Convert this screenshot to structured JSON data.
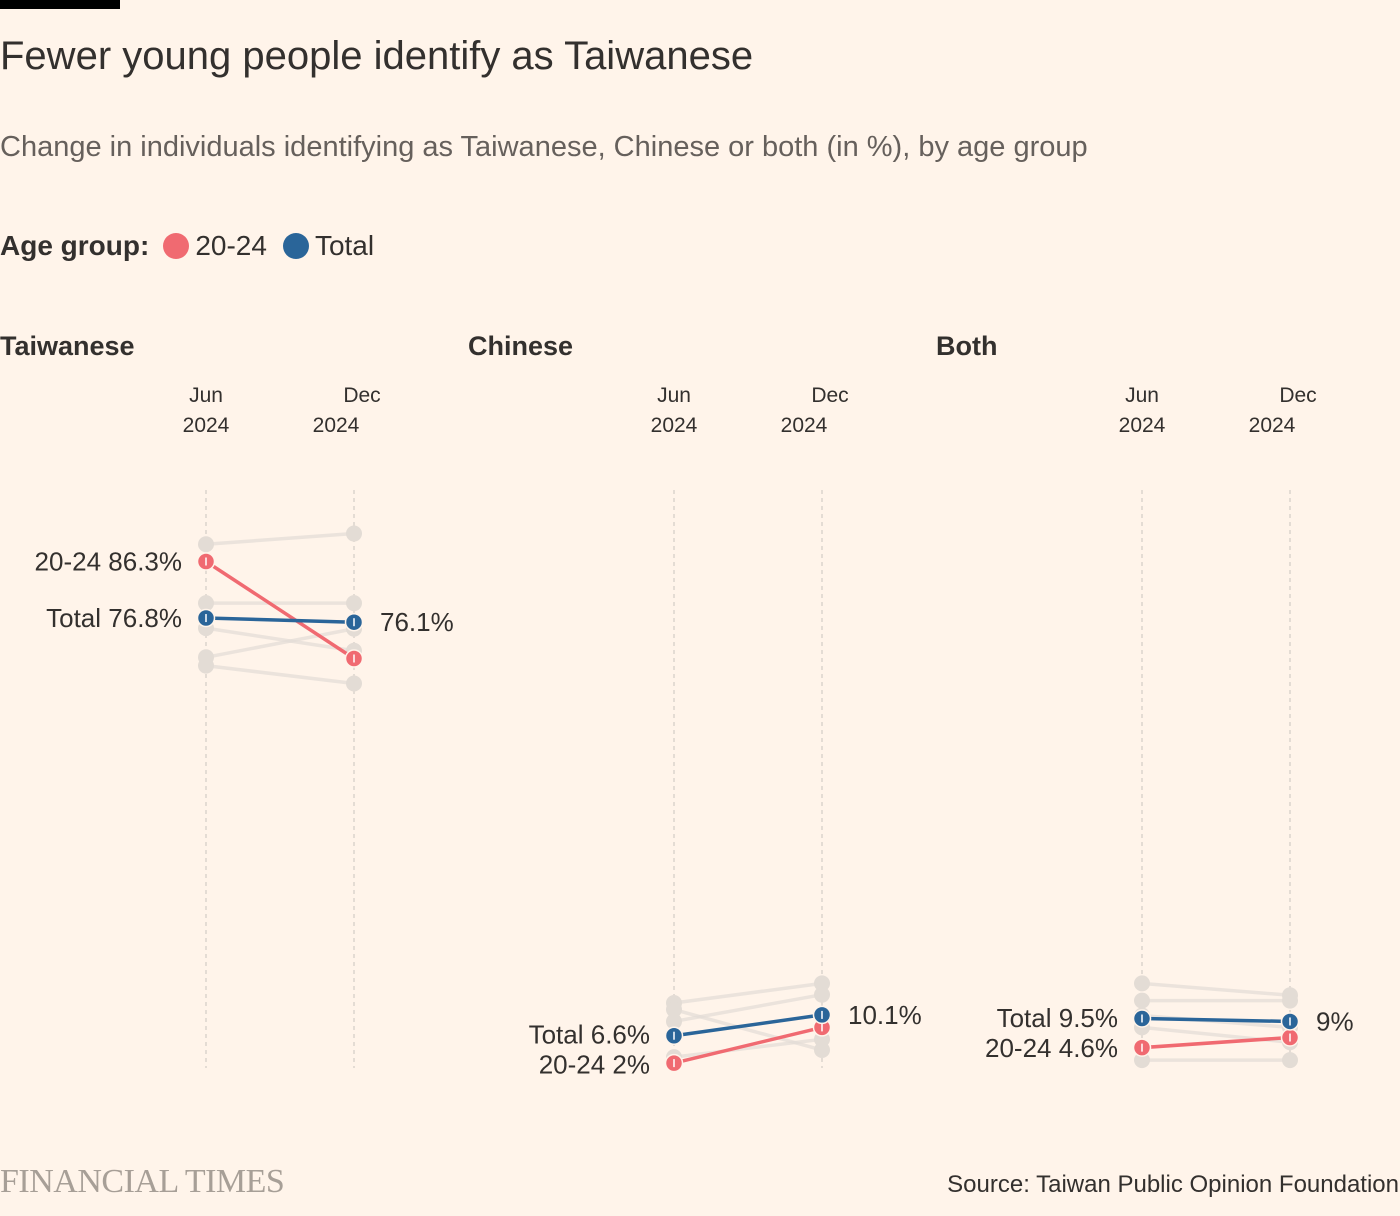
{
  "title": "Fewer young people identify as Taiwanese",
  "subtitle": "Change in individuals identifying as Taiwanese, Chinese or both (in %), by age group",
  "legend": {
    "title": "Age group:",
    "items": [
      {
        "label": "20-24",
        "color": "#f06a71"
      },
      {
        "label": "Total",
        "color": "#2a6599"
      }
    ]
  },
  "source": "Source: Taiwan Public Opinion Foundation",
  "brand": "FINANCIAL TIMES",
  "colors": {
    "background": "#fff4ea",
    "other_groups": "#e3dcd5",
    "axis": "#d2cbc5",
    "text": "#33302e"
  },
  "chart_data": {
    "type": "line",
    "x": [
      "Jun 2024",
      "Dec 2024"
    ],
    "x_tick_labels": [
      [
        "Jun",
        "2024"
      ],
      [
        "Dec",
        "2024"
      ]
    ],
    "panels": [
      {
        "title": "Taiwanese",
        "highlight": [
          {
            "name": "20-24",
            "values": [
              86.3,
              70.0
            ],
            "left_label": "20-24 86.3%",
            "right_label": ""
          },
          {
            "name": "Total",
            "values": [
              76.8,
              76.1
            ],
            "right_label": "76.1%",
            "left_label": "Total 76.8%"
          }
        ],
        "other_groups": [
          [
            89.2,
            91.0
          ],
          [
            79.3,
            79.3
          ],
          [
            75.1,
            71.3
          ],
          [
            70.2,
            75.0
          ],
          [
            68.8,
            65.8
          ]
        ]
      },
      {
        "title": "Chinese",
        "highlight": [
          {
            "name": "20-24",
            "values": [
              2.0,
              8.0
            ],
            "left_label": "20-24 2%",
            "right_label": ""
          },
          {
            "name": "Total",
            "values": [
              6.6,
              10.1
            ],
            "right_label": "10.1%",
            "left_label": "Total 6.6%"
          }
        ],
        "other_groups": [
          [
            12.1,
            15.4
          ],
          [
            9.0,
            13.5
          ],
          [
            3.0,
            6.0
          ],
          [
            11.0,
            4.2
          ]
        ]
      },
      {
        "title": "Both",
        "highlight": [
          {
            "name": "20-24",
            "values": [
              4.6,
              6.3
            ],
            "left_label": "20-24 4.6%",
            "right_label": ""
          },
          {
            "name": "Total",
            "values": [
              9.5,
              9.0
            ],
            "right_label": "9%",
            "left_label": "Total 9.5%"
          }
        ],
        "other_groups": [
          [
            15.4,
            13.4
          ],
          [
            12.5,
            12.5
          ],
          [
            8.0,
            5.5
          ],
          [
            2.5,
            2.5
          ],
          [
            10.0,
            8.0
          ]
        ]
      }
    ]
  }
}
